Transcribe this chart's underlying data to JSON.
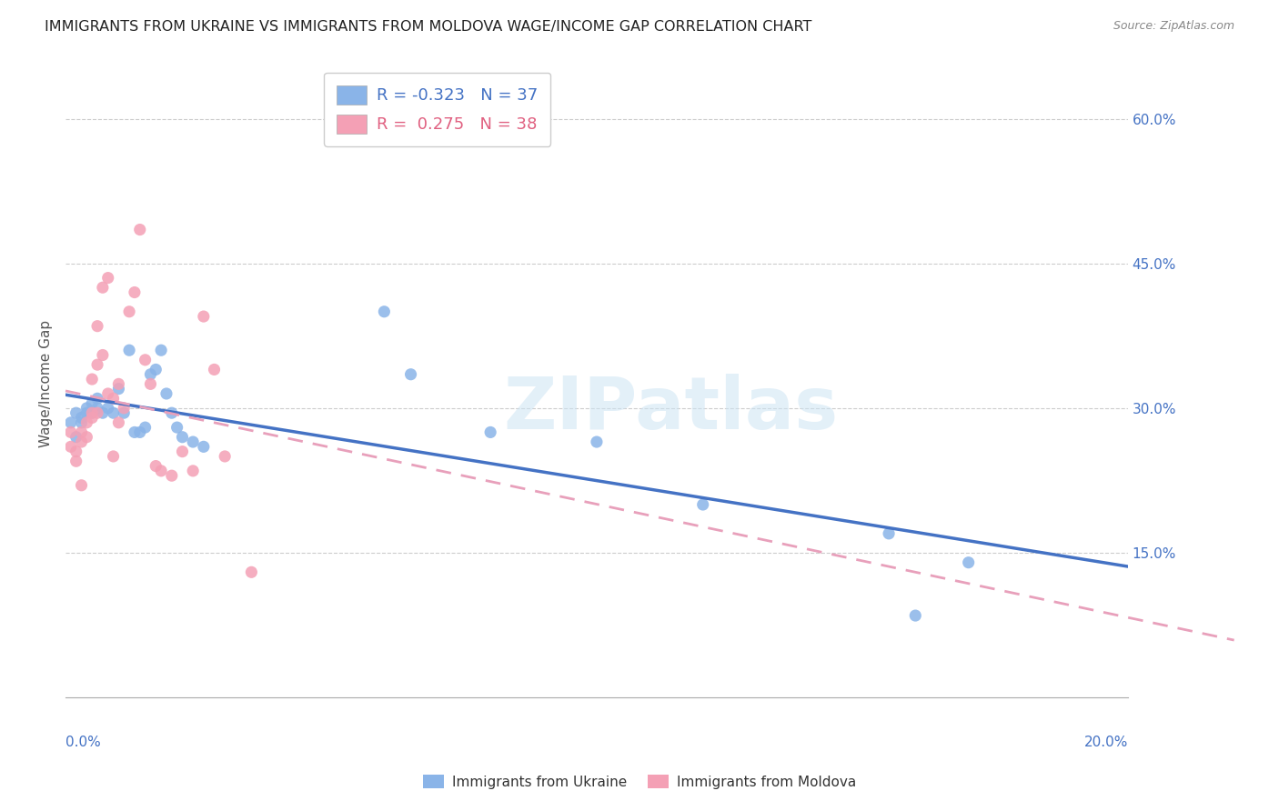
{
  "title": "IMMIGRANTS FROM UKRAINE VS IMMIGRANTS FROM MOLDOVA WAGE/INCOME GAP CORRELATION CHART",
  "source": "Source: ZipAtlas.com",
  "ylabel": "Wage/Income Gap",
  "ukraine_color": "#8AB4E8",
  "moldova_color": "#F4A0B5",
  "ukraine_line_color": "#4472C4",
  "moldova_line_color": "#E8A0BB",
  "watermark": "ZIPatlas",
  "legend_ukraine_R": "-0.323",
  "legend_ukraine_N": "37",
  "legend_moldova_R": "0.275",
  "legend_moldova_N": "38",
  "ukraine_points_x": [
    0.001,
    0.002,
    0.002,
    0.003,
    0.003,
    0.004,
    0.004,
    0.005,
    0.005,
    0.006,
    0.006,
    0.007,
    0.008,
    0.009,
    0.01,
    0.011,
    0.012,
    0.013,
    0.014,
    0.015,
    0.016,
    0.017,
    0.018,
    0.019,
    0.02,
    0.021,
    0.022,
    0.024,
    0.026,
    0.06,
    0.065,
    0.08,
    0.1,
    0.12,
    0.155,
    0.16,
    0.17
  ],
  "ukraine_points_y": [
    0.285,
    0.295,
    0.27,
    0.29,
    0.285,
    0.3,
    0.295,
    0.305,
    0.295,
    0.31,
    0.3,
    0.295,
    0.3,
    0.295,
    0.32,
    0.295,
    0.36,
    0.275,
    0.275,
    0.28,
    0.335,
    0.34,
    0.36,
    0.315,
    0.295,
    0.28,
    0.27,
    0.265,
    0.26,
    0.4,
    0.335,
    0.275,
    0.265,
    0.2,
    0.17,
    0.085,
    0.14
  ],
  "moldova_points_x": [
    0.001,
    0.001,
    0.002,
    0.002,
    0.003,
    0.003,
    0.003,
    0.004,
    0.004,
    0.005,
    0.005,
    0.005,
    0.006,
    0.006,
    0.006,
    0.007,
    0.007,
    0.008,
    0.008,
    0.009,
    0.009,
    0.01,
    0.01,
    0.011,
    0.012,
    0.013,
    0.014,
    0.015,
    0.016,
    0.017,
    0.018,
    0.02,
    0.022,
    0.024,
    0.026,
    0.028,
    0.03,
    0.035
  ],
  "moldova_points_y": [
    0.275,
    0.26,
    0.255,
    0.245,
    0.275,
    0.265,
    0.22,
    0.285,
    0.27,
    0.295,
    0.33,
    0.29,
    0.385,
    0.345,
    0.295,
    0.355,
    0.425,
    0.435,
    0.315,
    0.31,
    0.25,
    0.325,
    0.285,
    0.3,
    0.4,
    0.42,
    0.485,
    0.35,
    0.325,
    0.24,
    0.235,
    0.23,
    0.255,
    0.235,
    0.395,
    0.34,
    0.25,
    0.13
  ],
  "right_yticks": [
    0.15,
    0.3,
    0.45,
    0.6
  ],
  "right_yticklabels": [
    "15.0%",
    "30.0%",
    "45.0%",
    "60.0%"
  ],
  "xlim": [
    0.0,
    0.2
  ],
  "ylim": [
    0.0,
    0.65
  ]
}
